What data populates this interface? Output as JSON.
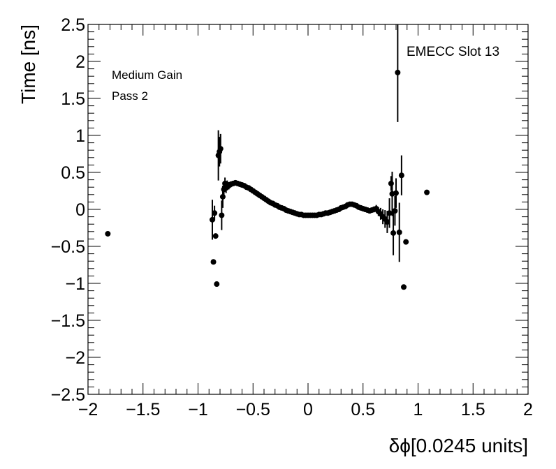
{
  "chart_data": {
    "type": "scatter",
    "xlabel": "δϕ[0.0245 units]",
    "ylabel": "Time [ns]",
    "xlim": [
      -2,
      2
    ],
    "ylim": [
      -2.5,
      2.5
    ],
    "x_ticks": [
      -2,
      -1.5,
      -1,
      -0.5,
      0,
      0.5,
      1,
      1.5,
      2
    ],
    "x_tick_labels": [
      "−2",
      "−1.5",
      "−1",
      "−0.5",
      "0",
      "0.5",
      "1",
      "1.5",
      "2"
    ],
    "y_ticks": [
      2.5,
      2,
      1.5,
      1,
      0.5,
      0,
      -0.5,
      -1,
      -1.5,
      -2,
      -2.5
    ],
    "y_tick_labels": [
      "2.5",
      "2",
      "1.5",
      "1",
      "0.5",
      "0",
      "−0.5",
      "−1",
      "−1.5",
      "−2",
      "−2.5"
    ],
    "grid": false,
    "annotations": [
      "Medium Gain",
      "Pass 2",
      "EMECC Slot 13"
    ],
    "marker_color": "#000000",
    "points": [
      {
        "x": -1.82,
        "y": -0.33,
        "err": 0
      },
      {
        "x": -0.87,
        "y": -0.14,
        "err": 0.27
      },
      {
        "x": -0.86,
        "y": -0.71,
        "err": 0
      },
      {
        "x": -0.85,
        "y": -0.05,
        "err": 0.1
      },
      {
        "x": -0.84,
        "y": -0.36,
        "err": 0
      },
      {
        "x": -0.83,
        "y": -1.01,
        "err": 0
      },
      {
        "x": -0.815,
        "y": 0.73,
        "err": 0.34
      },
      {
        "x": -0.805,
        "y": 0.78,
        "err": 0.2
      },
      {
        "x": -0.795,
        "y": 0.82,
        "err": 0.2
      },
      {
        "x": -0.785,
        "y": -0.08,
        "err": 0.2
      },
      {
        "x": -0.775,
        "y": 0.17,
        "err": 0.15
      },
      {
        "x": -0.765,
        "y": 0.27,
        "err": 0.1
      },
      {
        "x": -0.755,
        "y": 0.35,
        "err": 0.08
      },
      {
        "x": -0.745,
        "y": 0.29,
        "err": 0.07
      },
      {
        "x": -0.735,
        "y": 0.33,
        "err": 0.06
      },
      {
        "x": -0.72,
        "y": 0.32,
        "err": 0.05
      },
      {
        "x": -0.7,
        "y": 0.34,
        "err": 0.04
      },
      {
        "x": -0.68,
        "y": 0.35,
        "err": 0.03
      },
      {
        "x": -0.66,
        "y": 0.36,
        "err": 0.03
      },
      {
        "x": -0.64,
        "y": 0.35,
        "err": 0.03
      },
      {
        "x": -0.62,
        "y": 0.34,
        "err": 0.02
      },
      {
        "x": -0.6,
        "y": 0.33,
        "err": 0.02
      },
      {
        "x": -0.58,
        "y": 0.32,
        "err": 0.02
      },
      {
        "x": -0.56,
        "y": 0.3,
        "err": 0.02
      },
      {
        "x": -0.54,
        "y": 0.29,
        "err": 0.02
      },
      {
        "x": -0.52,
        "y": 0.27,
        "err": 0.02
      },
      {
        "x": -0.5,
        "y": 0.25,
        "err": 0.02
      },
      {
        "x": -0.48,
        "y": 0.23,
        "err": 0.02
      },
      {
        "x": -0.46,
        "y": 0.21,
        "err": 0.02
      },
      {
        "x": -0.44,
        "y": 0.19,
        "err": 0.02
      },
      {
        "x": -0.42,
        "y": 0.17,
        "err": 0.02
      },
      {
        "x": -0.4,
        "y": 0.15,
        "err": 0.02
      },
      {
        "x": -0.38,
        "y": 0.13,
        "err": 0.02
      },
      {
        "x": -0.36,
        "y": 0.11,
        "err": 0.02
      },
      {
        "x": -0.34,
        "y": 0.09,
        "err": 0.02
      },
      {
        "x": -0.32,
        "y": 0.08,
        "err": 0.02
      },
      {
        "x": -0.3,
        "y": 0.06,
        "err": 0.02
      },
      {
        "x": -0.28,
        "y": 0.05,
        "err": 0.02
      },
      {
        "x": -0.26,
        "y": 0.03,
        "err": 0.02
      },
      {
        "x": -0.24,
        "y": 0.02,
        "err": 0.02
      },
      {
        "x": -0.22,
        "y": 0.01,
        "err": 0.02
      },
      {
        "x": -0.2,
        "y": -0.01,
        "err": 0.02
      },
      {
        "x": -0.18,
        "y": -0.02,
        "err": 0.02
      },
      {
        "x": -0.16,
        "y": -0.03,
        "err": 0.02
      },
      {
        "x": -0.14,
        "y": -0.04,
        "err": 0.02
      },
      {
        "x": -0.12,
        "y": -0.05,
        "err": 0.02
      },
      {
        "x": -0.1,
        "y": -0.06,
        "err": 0.02
      },
      {
        "x": -0.08,
        "y": -0.07,
        "err": 0.02
      },
      {
        "x": -0.06,
        "y": -0.07,
        "err": 0.02
      },
      {
        "x": -0.04,
        "y": -0.08,
        "err": 0.02
      },
      {
        "x": -0.02,
        "y": -0.08,
        "err": 0.02
      },
      {
        "x": 0.0,
        "y": -0.08,
        "err": 0.02
      },
      {
        "x": 0.02,
        "y": -0.08,
        "err": 0.02
      },
      {
        "x": 0.04,
        "y": -0.08,
        "err": 0.02
      },
      {
        "x": 0.06,
        "y": -0.08,
        "err": 0.02
      },
      {
        "x": 0.08,
        "y": -0.08,
        "err": 0.02
      },
      {
        "x": 0.1,
        "y": -0.07,
        "err": 0.02
      },
      {
        "x": 0.12,
        "y": -0.07,
        "err": 0.02
      },
      {
        "x": 0.14,
        "y": -0.06,
        "err": 0.02
      },
      {
        "x": 0.16,
        "y": -0.05,
        "err": 0.02
      },
      {
        "x": 0.18,
        "y": -0.05,
        "err": 0.02
      },
      {
        "x": 0.2,
        "y": -0.04,
        "err": 0.02
      },
      {
        "x": 0.22,
        "y": -0.03,
        "err": 0.02
      },
      {
        "x": 0.24,
        "y": -0.02,
        "err": 0.02
      },
      {
        "x": 0.26,
        "y": -0.01,
        "err": 0.02
      },
      {
        "x": 0.28,
        "y": 0.0,
        "err": 0.02
      },
      {
        "x": 0.3,
        "y": 0.02,
        "err": 0.02
      },
      {
        "x": 0.32,
        "y": 0.03,
        "err": 0.02
      },
      {
        "x": 0.34,
        "y": 0.04,
        "err": 0.02
      },
      {
        "x": 0.36,
        "y": 0.06,
        "err": 0.02
      },
      {
        "x": 0.38,
        "y": 0.07,
        "err": 0.02
      },
      {
        "x": 0.4,
        "y": 0.07,
        "err": 0.02
      },
      {
        "x": 0.42,
        "y": 0.06,
        "err": 0.03
      },
      {
        "x": 0.44,
        "y": 0.05,
        "err": 0.03
      },
      {
        "x": 0.46,
        "y": 0.03,
        "err": 0.03
      },
      {
        "x": 0.48,
        "y": 0.02,
        "err": 0.03
      },
      {
        "x": 0.5,
        "y": 0.01,
        "err": 0.03
      },
      {
        "x": 0.52,
        "y": 0.0,
        "err": 0.03
      },
      {
        "x": 0.54,
        "y": -0.01,
        "err": 0.03
      },
      {
        "x": 0.56,
        "y": -0.02,
        "err": 0.03
      },
      {
        "x": 0.58,
        "y": -0.01,
        "err": 0.03
      },
      {
        "x": 0.6,
        "y": 0.0,
        "err": 0.04
      },
      {
        "x": 0.62,
        "y": 0.01,
        "err": 0.05
      },
      {
        "x": 0.64,
        "y": -0.03,
        "err": 0.06
      },
      {
        "x": 0.66,
        "y": -0.06,
        "err": 0.08
      },
      {
        "x": 0.68,
        "y": -0.1,
        "err": 0.1
      },
      {
        "x": 0.7,
        "y": -0.13,
        "err": 0.12
      },
      {
        "x": 0.72,
        "y": -0.17,
        "err": 0.15
      },
      {
        "x": 0.74,
        "y": -0.05,
        "err": 0.2
      },
      {
        "x": 0.755,
        "y": 0.35,
        "err": 0.1
      },
      {
        "x": 0.765,
        "y": 0.21,
        "err": 0.3
      },
      {
        "x": 0.775,
        "y": -0.32,
        "err": 0.3
      },
      {
        "x": 0.79,
        "y": -0.02,
        "err": 0.2
      },
      {
        "x": 0.8,
        "y": 0.22,
        "err": 0.2
      },
      {
        "x": 0.815,
        "y": 1.85,
        "err": 0.67
      },
      {
        "x": 0.83,
        "y": -0.31,
        "err": 0.4
      },
      {
        "x": 0.85,
        "y": 0.46,
        "err": 0.27
      },
      {
        "x": 0.87,
        "y": -1.05,
        "err": 0
      },
      {
        "x": 0.89,
        "y": -0.44,
        "err": 0
      },
      {
        "x": 1.08,
        "y": 0.23,
        "err": 0
      }
    ]
  }
}
